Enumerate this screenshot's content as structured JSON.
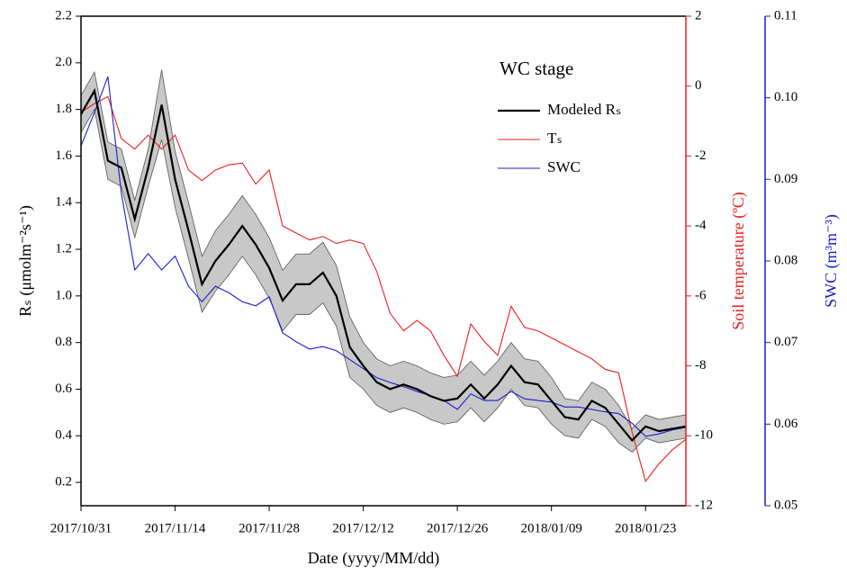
{
  "chart_data": {
    "type": "line",
    "legend_title": "WC stage",
    "x_label": "Date (yyyy/MM/dd)",
    "y_label": "Rₛ (μmolm⁻²s⁻¹)",
    "y2_label": "Soil temperature (ºC)",
    "y3_label": "SWC (m³m⁻³)",
    "x": [
      "2017/10/31",
      "2017/11/02",
      "2017/11/04",
      "2017/11/06",
      "2017/11/08",
      "2017/11/10",
      "2017/11/12",
      "2017/11/14",
      "2017/11/16",
      "2017/11/18",
      "2017/11/20",
      "2017/11/22",
      "2017/11/24",
      "2017/11/26",
      "2017/11/28",
      "2017/11/30",
      "2017/12/02",
      "2017/12/04",
      "2017/12/06",
      "2017/12/08",
      "2017/12/10",
      "2017/12/12",
      "2017/12/14",
      "2017/12/16",
      "2017/12/18",
      "2017/12/20",
      "2017/12/22",
      "2017/12/24",
      "2017/12/26",
      "2017/12/28",
      "2017/12/30",
      "2018/01/01",
      "2018/01/03",
      "2018/01/05",
      "2018/01/07",
      "2018/01/09",
      "2018/01/11",
      "2018/01/13",
      "2018/01/15",
      "2018/01/17",
      "2018/01/19",
      "2018/01/21",
      "2018/01/23",
      "2018/01/25",
      "2018/01/27",
      "2018/01/29"
    ],
    "xlim": [
      "2017/10/31",
      "2018/01/29"
    ],
    "xticks": [
      "2017/10/31",
      "2017/11/14",
      "2017/11/28",
      "2017/12/12",
      "2017/12/26",
      "2018/01/09",
      "2018/01/23"
    ],
    "band": {
      "color": "#c8c8c8",
      "upper": [
        1.86,
        1.96,
        1.66,
        1.63,
        1.41,
        1.63,
        1.97,
        1.62,
        1.4,
        1.17,
        1.28,
        1.35,
        1.43,
        1.35,
        1.25,
        1.11,
        1.18,
        1.18,
        1.23,
        1.13,
        0.91,
        0.8,
        0.73,
        0.7,
        0.72,
        0.7,
        0.67,
        0.65,
        0.66,
        0.72,
        0.66,
        0.72,
        0.8,
        0.73,
        0.72,
        0.65,
        0.56,
        0.55,
        0.63,
        0.6,
        0.53,
        0.43,
        0.49,
        0.47,
        0.48,
        0.49
      ],
      "lower": [
        1.7,
        1.8,
        1.5,
        1.47,
        1.25,
        1.47,
        1.67,
        1.38,
        1.16,
        0.93,
        1.02,
        1.09,
        1.17,
        1.09,
        0.99,
        0.85,
        0.92,
        0.92,
        0.97,
        0.87,
        0.65,
        0.6,
        0.53,
        0.5,
        0.52,
        0.5,
        0.47,
        0.45,
        0.46,
        0.52,
        0.46,
        0.52,
        0.6,
        0.53,
        0.52,
        0.45,
        0.4,
        0.39,
        0.47,
        0.44,
        0.37,
        0.33,
        0.39,
        0.37,
        0.38,
        0.39
      ]
    },
    "series": [
      {
        "name": "Modeled Rₛ",
        "color": "#000000",
        "axis": "y",
        "values": [
          1.78,
          1.88,
          1.58,
          1.55,
          1.33,
          1.55,
          1.82,
          1.5,
          1.28,
          1.05,
          1.15,
          1.22,
          1.3,
          1.22,
          1.12,
          0.98,
          1.05,
          1.05,
          1.1,
          1.0,
          0.78,
          0.7,
          0.63,
          0.6,
          0.62,
          0.6,
          0.57,
          0.55,
          0.56,
          0.62,
          0.56,
          0.62,
          0.7,
          0.63,
          0.62,
          0.55,
          0.48,
          0.47,
          0.55,
          0.52,
          0.45,
          0.38,
          0.44,
          0.42,
          0.43,
          0.44
        ]
      },
      {
        "name": "Tₛ",
        "color": "#e8201e",
        "axis": "y2",
        "values": [
          -0.75,
          -0.5,
          -0.3,
          -1.5,
          -1.8,
          -1.4,
          -1.8,
          -1.4,
          -2.4,
          -2.7,
          -2.4,
          -2.25,
          -2.2,
          -2.8,
          -2.4,
          -4.0,
          -4.2,
          -4.4,
          -4.3,
          -4.5,
          -4.4,
          -4.5,
          -5.3,
          -6.5,
          -7.0,
          -6.7,
          -7.0,
          -7.7,
          -8.3,
          -6.8,
          -7.3,
          -7.7,
          -6.3,
          -6.9,
          -7.0,
          -7.2,
          -7.4,
          -7.6,
          -7.8,
          -8.1,
          -8.2,
          -9.9,
          -11.3,
          -10.8,
          -10.4,
          -10.1
        ]
      },
      {
        "name": "SWC",
        "color": "#1c1ccc",
        "axis": "y3",
        "values": [
          0.0941,
          0.0982,
          0.1026,
          0.0883,
          0.0789,
          0.0809,
          0.0789,
          0.0806,
          0.0769,
          0.075,
          0.0769,
          0.0761,
          0.075,
          0.0745,
          0.0756,
          0.0712,
          0.0701,
          0.0692,
          0.0695,
          0.069,
          0.0679,
          0.0668,
          0.0657,
          0.0651,
          0.0646,
          0.064,
          0.0635,
          0.0629,
          0.0618,
          0.0637,
          0.0629,
          0.0629,
          0.064,
          0.0631,
          0.0629,
          0.0627,
          0.0621,
          0.0621,
          0.0618,
          0.0615,
          0.0613,
          0.0601,
          0.0585,
          0.0588,
          0.0593,
          0.0596
        ]
      }
    ],
    "ylim": [
      0.1,
      2.2
    ],
    "yticks": [
      0.2,
      0.4,
      0.6,
      0.8,
      {
        "value": 1,
        "label": "1.0"
      },
      1.2,
      1.4,
      1.6,
      1.8,
      {
        "value": 2,
        "label": "2.0"
      },
      2.2
    ],
    "y2lim": [
      -12,
      2
    ],
    "y2ticks": [
      -12,
      -10,
      -8,
      -6,
      -4,
      -2,
      0,
      2
    ],
    "y2color": "#e8201e",
    "y3lim": [
      0.05,
      0.11
    ],
    "y3ticks": [
      0.05,
      0.06,
      0.07,
      0.08,
      0.09,
      {
        "value": 0.1,
        "label": "0.10"
      },
      0.11
    ],
    "y3color": "#1c1ccc"
  }
}
